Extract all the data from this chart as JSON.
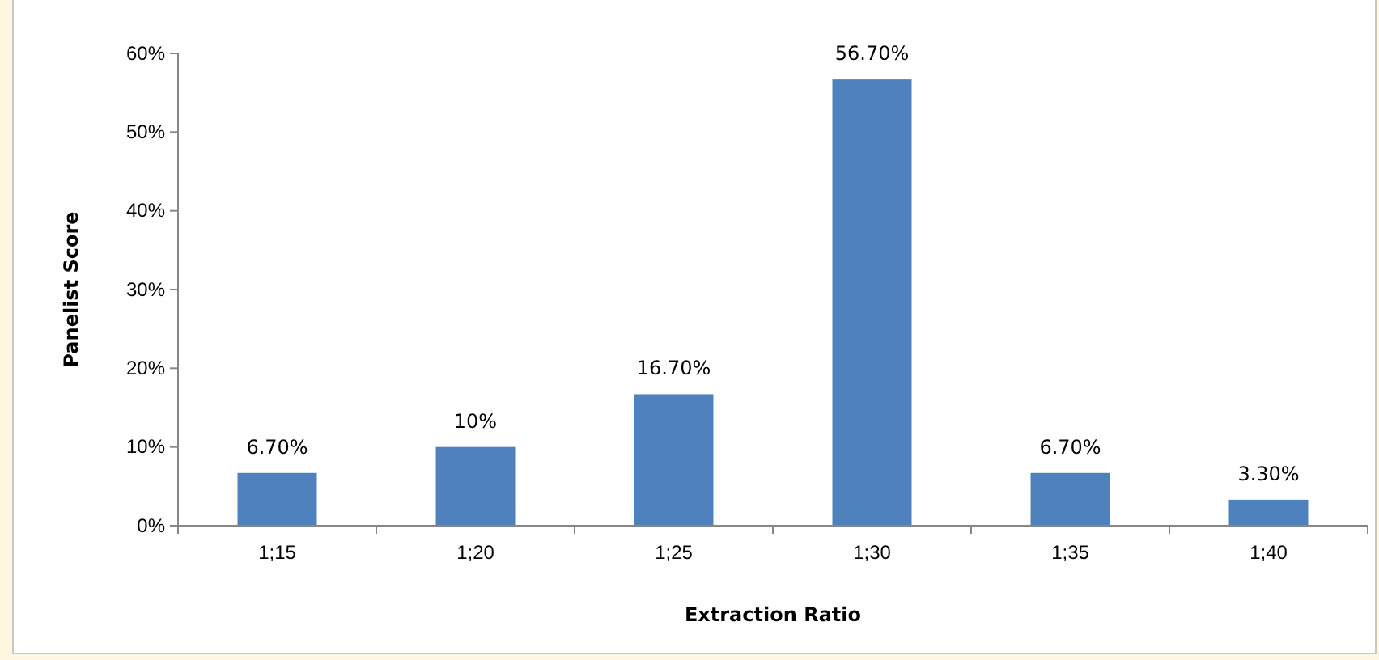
{
  "chart_data": {
    "type": "bar",
    "xlabel": "Extraction Ratio",
    "ylabel": "Panelist Score",
    "categories": [
      "1;15",
      "1;20",
      "1;25",
      "1;30",
      "1;35",
      "1;40"
    ],
    "values": [
      6.7,
      10,
      16.7,
      56.7,
      6.7,
      3.3
    ],
    "value_labels": [
      "6.70%",
      "10%",
      "16.70%",
      "56.70%",
      "6.70%",
      "3.30%"
    ],
    "color": "#4f81bd",
    "ylim": [
      0,
      60
    ],
    "yticks": [
      {
        "value": 0,
        "label": "0%"
      },
      {
        "value": 10,
        "label": "10%"
      },
      {
        "value": 20,
        "label": "20%"
      },
      {
        "value": 30,
        "label": "30%"
      },
      {
        "value": 40,
        "label": "40%"
      },
      {
        "value": 50,
        "label": "50%"
      },
      {
        "value": 60,
        "label": "60%"
      }
    ],
    "grid": false,
    "legend": false
  }
}
